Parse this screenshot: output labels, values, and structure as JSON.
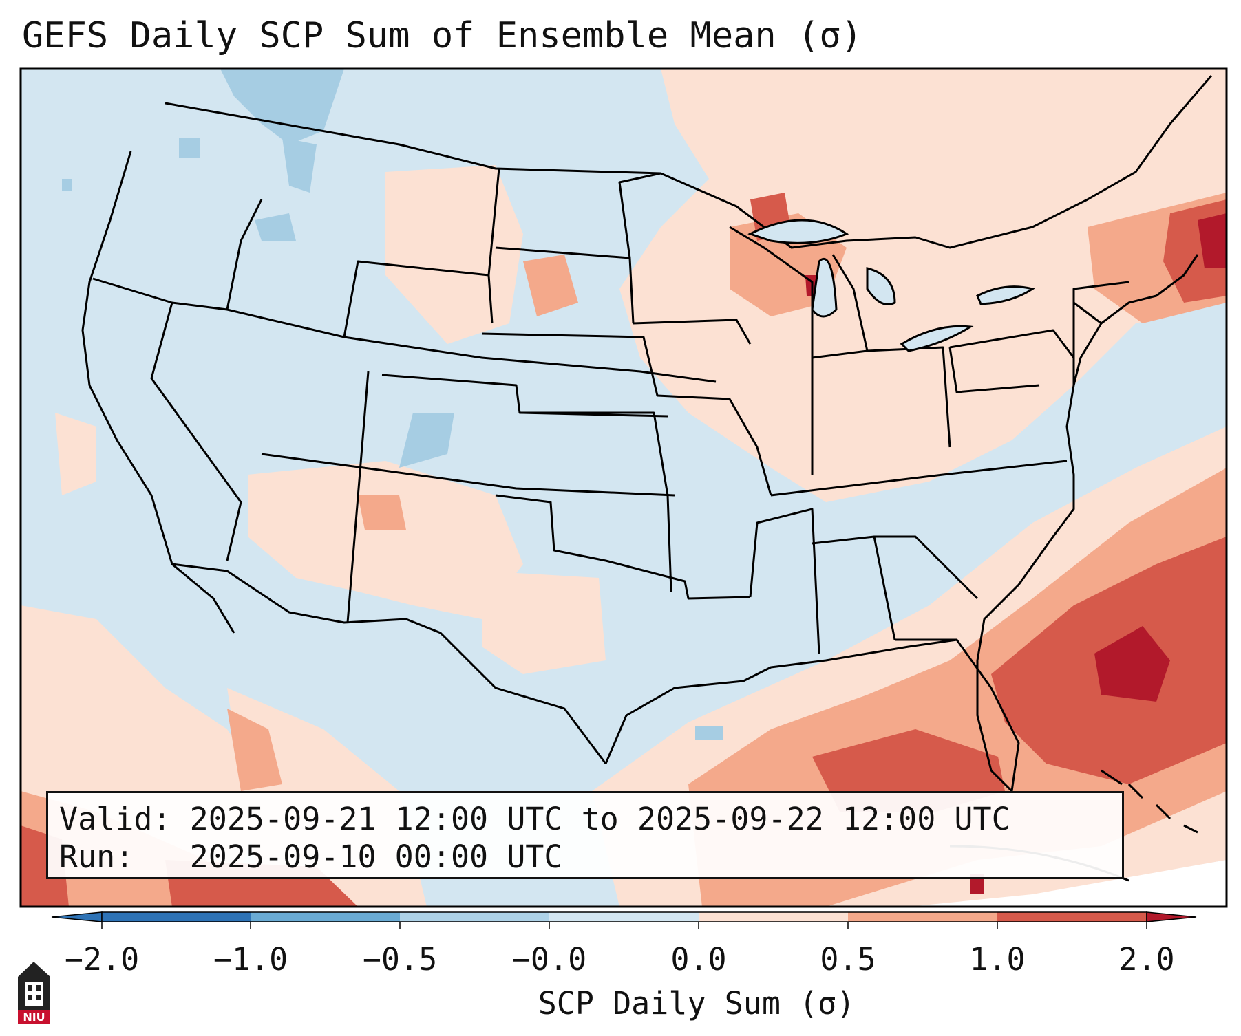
{
  "title": "GEFS Daily SCP Sum of Ensemble Mean (σ)",
  "info": {
    "valid_line": "Valid: 2025-09-21 12:00 UTC to 2025-09-22 12:00 UTC",
    "run_line": "Run:   2025-09-10 00:00 UTC"
  },
  "colorbar": {
    "label": "SCP Daily Sum (σ)",
    "ticks": [
      "−2.0",
      "−1.0",
      "−0.5",
      "−0.0",
      "0.0",
      "0.5",
      "1.0",
      "2.0"
    ],
    "colors": [
      "#2e73b6",
      "#6aabd4",
      "#aed2e7",
      "#d3e6f1",
      "#fce1d3",
      "#f4a98b",
      "#d65a4b",
      "#b2192b"
    ],
    "extend": "both"
  },
  "map": {
    "region": "Contiguous United States",
    "ocean_color": "#d3e6f1",
    "border_color": "#000000"
  },
  "logo": {
    "text": "NIU",
    "icon": "university-seal-icon"
  }
}
